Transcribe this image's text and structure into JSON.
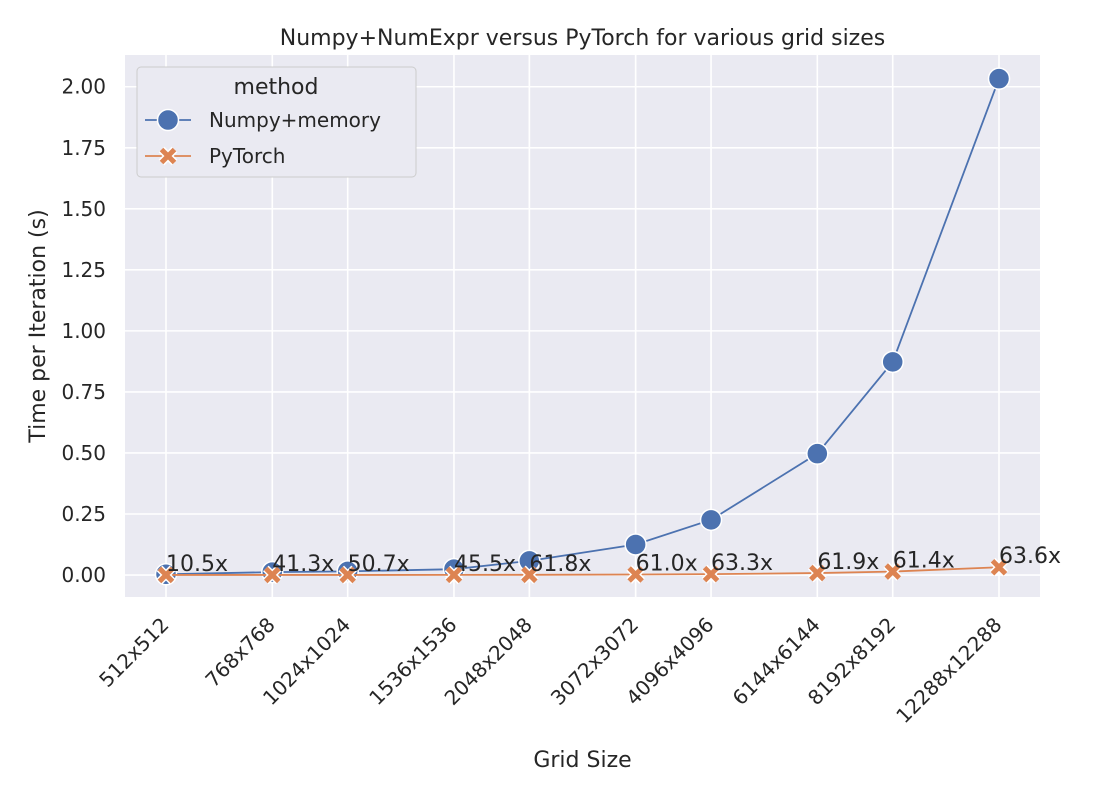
{
  "chart_data": {
    "type": "line",
    "title": "Numpy+NumExpr versus PyTorch for various grid sizes",
    "xlabel": "Grid Size",
    "ylabel": "Time per Iteration (s)",
    "x": [
      512,
      768,
      1024,
      1536,
      2048,
      3072,
      4096,
      6144,
      8192,
      12288
    ],
    "x_scale": "log",
    "categories": [
      "512x512",
      "768x768",
      "1024x1024",
      "1536x1536",
      "2048x2048",
      "3072x3072",
      "4096x4096",
      "6144x6144",
      "8192x8192",
      "12288x12288"
    ],
    "ylim": [
      -0.09,
      2.13
    ],
    "yticks": [
      0.0,
      0.25,
      0.5,
      0.75,
      1.0,
      1.25,
      1.5,
      1.75,
      2.0
    ],
    "ytick_labels": [
      "0.00",
      "0.25",
      "0.50",
      "0.75",
      "1.00",
      "1.25",
      "1.50",
      "1.75",
      "2.00"
    ],
    "grid": true,
    "legend": {
      "title": "method",
      "placement": "top-left"
    },
    "series": [
      {
        "name": "Numpy+memory",
        "marker": "circle",
        "color": "#4c72b0",
        "values": [
          0.003,
          0.012,
          0.015,
          0.024,
          0.058,
          0.125,
          0.226,
          0.497,
          0.873,
          2.033
        ]
      },
      {
        "name": "PyTorch",
        "marker": "x",
        "color": "#dd8452",
        "values": [
          0.0003,
          0.0003,
          0.0003,
          0.0005,
          0.0009,
          0.0021,
          0.0036,
          0.008,
          0.0142,
          0.032
        ]
      }
    ],
    "annotations": [
      "10.5x",
      "41.3x",
      "50.7x",
      "45.5x",
      "61.8x",
      "61.0x",
      "63.3x",
      "61.9x",
      "61.4x",
      "63.6x"
    ],
    "colors": {
      "background": "#eaeaf2",
      "grid": "#ffffff"
    }
  }
}
